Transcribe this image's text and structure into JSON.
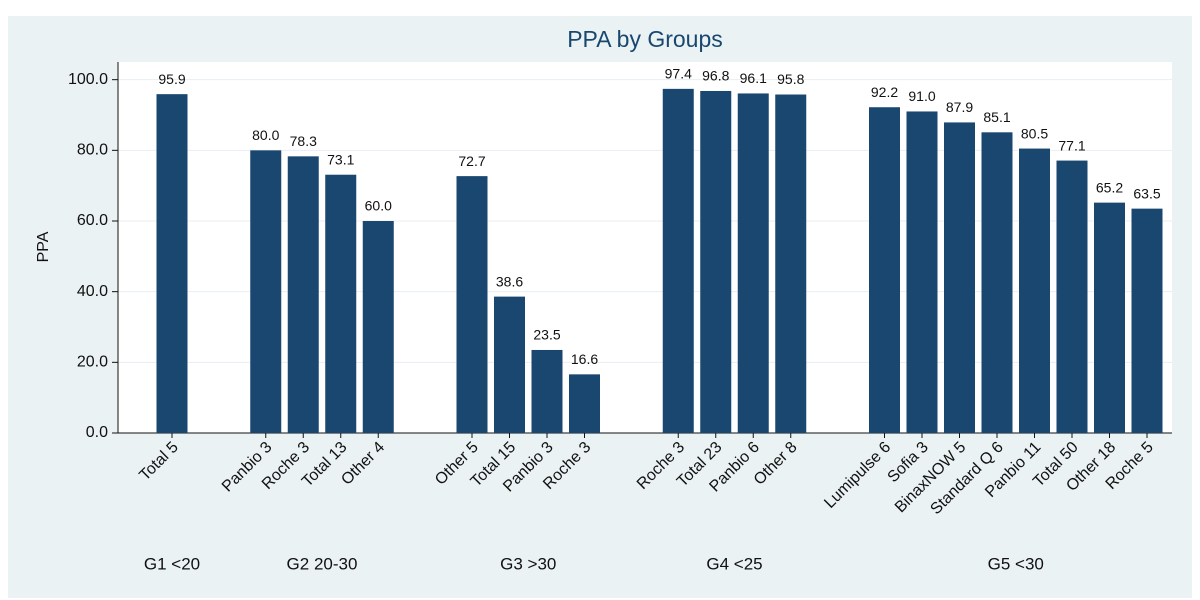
{
  "chart_data": {
    "type": "bar",
    "title": "PPA by Groups",
    "y_label": "PPA",
    "color": "#1a476f",
    "ylim": [
      0,
      105
    ],
    "yticks": [
      {
        "value": 0,
        "label": "0.0"
      },
      {
        "value": 20,
        "label": "20.0"
      },
      {
        "value": 40,
        "label": "40.0"
      },
      {
        "value": 60,
        "label": "60.0"
      },
      {
        "value": 80,
        "label": "80.0"
      },
      {
        "value": 100,
        "label": "100.0"
      }
    ],
    "grid": true,
    "groups": [
      {
        "name": "G1 <20",
        "categories": [
          "Total 5"
        ],
        "values": [
          95.9
        ],
        "value_labels": [
          "95.9"
        ]
      },
      {
        "name": "G2 20-30",
        "categories": [
          "Panbio 3",
          "Roche 3",
          "Total 13",
          "Other 4"
        ],
        "values": [
          80,
          78.3,
          73.1,
          60
        ],
        "value_labels": [
          "80.0",
          "78.3",
          "73.1",
          "60.0"
        ]
      },
      {
        "name": "G3 >30",
        "categories": [
          "Other 5",
          "Total 15",
          "Panbio 3",
          "Roche 3"
        ],
        "values": [
          72.7,
          38.6,
          23.5,
          16.6
        ],
        "value_labels": [
          "72.7",
          "38.6",
          "23.5",
          "16.6"
        ]
      },
      {
        "name": "G4 <25",
        "categories": [
          "Roche 3",
          "Total 23",
          "Panbio 6",
          "Other 8"
        ],
        "values": [
          97.4,
          96.8,
          96.1,
          95.8
        ],
        "value_labels": [
          "97.4",
          "96.8",
          "96.1",
          "95.8"
        ]
      },
      {
        "name": "G5 <30",
        "categories": [
          "Lumipulse 6",
          "Sofia 3",
          "BinaxNOW 5",
          "Standard Q 6",
          "Panbio 11",
          "Total 50",
          "Other 18",
          "Roche 5"
        ],
        "values": [
          92.2,
          91,
          87.9,
          85.1,
          80.5,
          77.1,
          65.2,
          63.5
        ],
        "value_labels": [
          "92.2",
          "91.0",
          "87.9",
          "85.1",
          "80.5",
          "77.1",
          "65.2",
          "63.5"
        ]
      }
    ]
  }
}
